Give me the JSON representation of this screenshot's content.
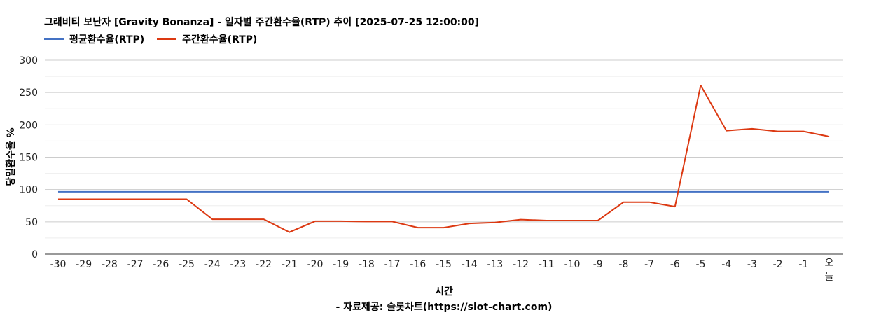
{
  "title": "그래비티 보난자 [Gravity Bonanza] - 일자별 주간환수율(RTP) 추이 [2025-07-25 12:00:00]",
  "source": "- 자료제공: 슬롯차트(https://slot-chart.com)",
  "colors": {
    "average": "#4472c4",
    "weekly": "#dc3912",
    "grid": "#cccccc",
    "minor_grid": "#eeeeee"
  },
  "chart_data": {
    "type": "line",
    "title": "그래비티 보난자 [Gravity Bonanza] - 일자별 주간환수율(RTP) 추이 [2025-07-25 12:00:00]",
    "xlabel": "시간",
    "ylabel": "당일환수율 %",
    "ylim": [
      0,
      300
    ],
    "yticks": [
      "300",
      "250",
      "200",
      "150",
      "100",
      "50",
      "0"
    ],
    "categories": [
      "-30",
      "-29",
      "-28",
      "-27",
      "-26",
      "-25",
      "-24",
      "-23",
      "-22",
      "-21",
      "-20",
      "-19",
      "-18",
      "-17",
      "-16",
      "-15",
      "-14",
      "-13",
      "-12",
      "-11",
      "-10",
      "-9",
      "-8",
      "-7",
      "-6",
      "-5",
      "-4",
      "-3",
      "-2",
      "-1",
      "오늘"
    ],
    "legend_position": "top-left",
    "grid": true,
    "series": [
      {
        "name": "평균환수율(RTP)",
        "color": "#4472c4",
        "values": [
          96.5,
          96.5,
          96.5,
          96.5,
          96.5,
          96.5,
          96.5,
          96.5,
          96.5,
          96.5,
          96.5,
          96.5,
          96.5,
          96.5,
          96.5,
          96.5,
          96.5,
          96.5,
          96.5,
          96.5,
          96.5,
          96.5,
          96.5,
          96.5,
          96.5,
          96.5,
          96.5,
          96.5,
          96.5,
          96.5,
          96.5
        ]
      },
      {
        "name": "주간환수율(RTP)",
        "color": "#dc3912",
        "values": [
          85,
          85,
          85,
          85,
          85,
          85,
          54,
          54,
          54,
          34,
          51,
          51,
          50.5,
          50.5,
          41,
          41,
          47.5,
          49,
          53.5,
          52,
          52,
          52,
          80.5,
          80.5,
          73.5,
          261,
          191,
          194,
          190,
          190,
          182
        ]
      }
    ]
  }
}
